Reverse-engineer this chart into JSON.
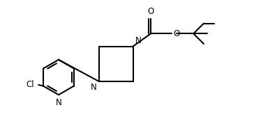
{
  "bg_color": "#ffffff",
  "line_color": "#000000",
  "line_width": 1.5,
  "font_size": 8.5,
  "figsize": [
    3.64,
    1.94
  ],
  "dpi": 100,
  "xlim": [
    0.0,
    10.0
  ],
  "ylim": [
    0.0,
    5.5
  ]
}
